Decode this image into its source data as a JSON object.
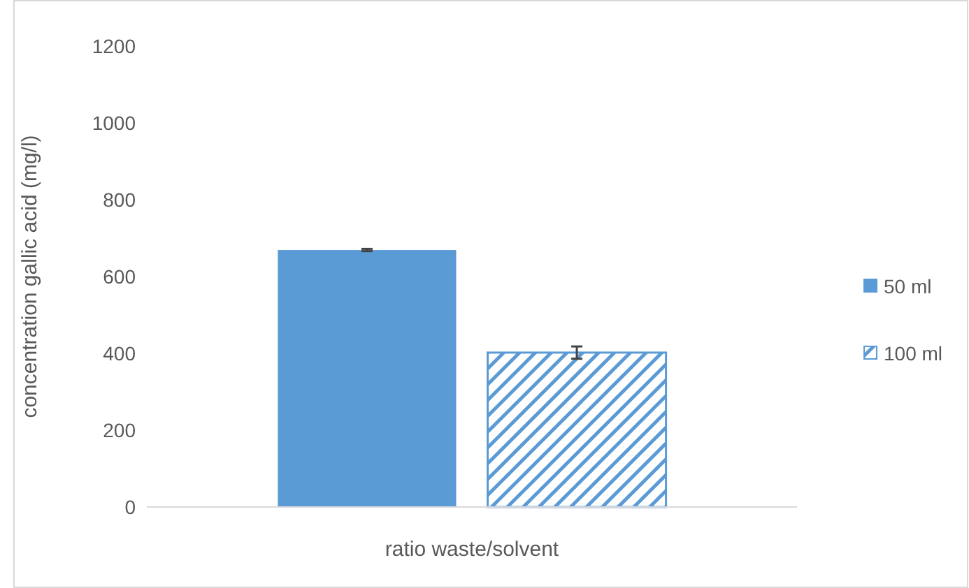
{
  "chart_data": {
    "type": "bar",
    "xlabel": "ratio waste/solvent",
    "ylabel": "concentration gallic acid (mg/l)",
    "categories": [
      null
    ],
    "series": [
      {
        "name": "50 ml",
        "color": "#5b9bd5",
        "values": [
          669
        ],
        "errors": [
          3
        ]
      },
      {
        "name": "100 ml",
        "color": "#5b9bd5",
        "values": [
          402
        ],
        "errors": [
          16
        ]
      }
    ],
    "ylim": [
      0,
      1200
    ],
    "yticks": [
      0,
      200,
      400,
      600,
      800,
      1000,
      1200
    ],
    "grid": false,
    "legend": "right"
  }
}
